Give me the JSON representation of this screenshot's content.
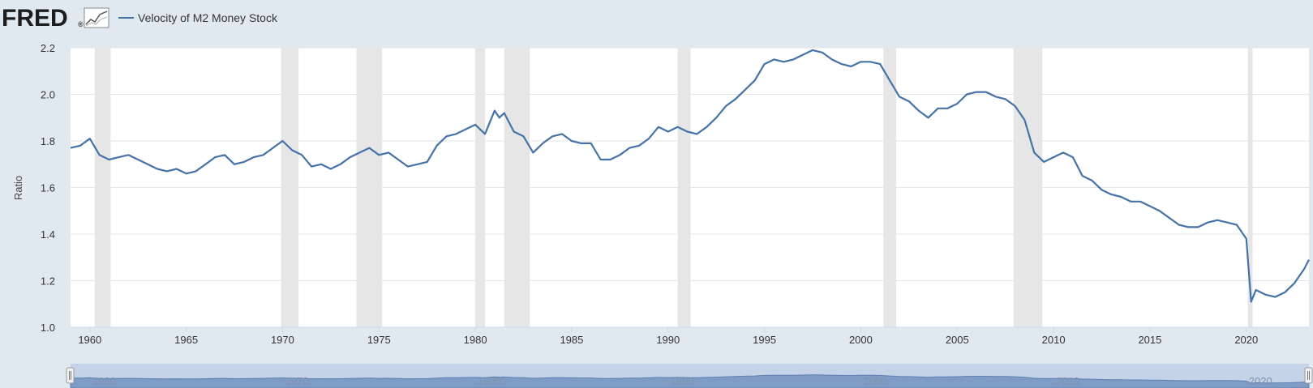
{
  "header": {
    "logo_text": "FRED",
    "logo_mark": "®",
    "logo_icon": "line-chart-icon"
  },
  "colors": {
    "series": "#4572a7",
    "recession": "#e6e6e6",
    "background": "#e1e9f0",
    "plot_bg": "#ffffff",
    "navigator_fill": "#7f9cc6",
    "navigator_mask": "#c5d3e8"
  },
  "chart_data": {
    "type": "line",
    "title": "",
    "xlabel": "",
    "ylabel": "Ratio",
    "xlim": [
      1959.0,
      2023.25
    ],
    "ylim": [
      1.0,
      2.2
    ],
    "yticks": [
      "1.0",
      "1.2",
      "1.4",
      "1.6",
      "1.8",
      "2.0",
      "2.2"
    ],
    "xticks": [
      "1960",
      "1965",
      "1970",
      "1975",
      "1980",
      "1985",
      "1990",
      "1995",
      "2000",
      "2005",
      "2010",
      "2015",
      "2020"
    ],
    "navigator_xticks": [
      "1960",
      "1970",
      "1980",
      "1990",
      "2000",
      "2010",
      "2020"
    ],
    "grid": true,
    "legend_position": "top-left",
    "recessions": [
      [
        1960.25,
        1961.08
      ],
      [
        1969.92,
        1970.83
      ],
      [
        1973.83,
        1975.17
      ],
      [
        1980.0,
        1980.5
      ],
      [
        1981.5,
        1982.83
      ],
      [
        1990.5,
        1991.17
      ],
      [
        2001.17,
        2001.83
      ],
      [
        2007.92,
        2009.42
      ],
      [
        2020.08,
        2020.33
      ]
    ],
    "series": [
      {
        "name": "Velocity of M2 Money Stock",
        "x": [
          1959.0,
          1959.5,
          1960.0,
          1960.5,
          1961.0,
          1961.5,
          1962.0,
          1962.5,
          1963.0,
          1963.5,
          1964.0,
          1964.5,
          1965.0,
          1965.5,
          1966.0,
          1966.5,
          1967.0,
          1967.5,
          1968.0,
          1968.5,
          1969.0,
          1969.5,
          1970.0,
          1970.5,
          1971.0,
          1971.5,
          1972.0,
          1972.5,
          1973.0,
          1973.5,
          1974.0,
          1974.5,
          1975.0,
          1975.5,
          1976.0,
          1976.5,
          1977.0,
          1977.5,
          1978.0,
          1978.5,
          1979.0,
          1979.5,
          1980.0,
          1980.5,
          1981.0,
          1981.25,
          1981.5,
          1982.0,
          1982.5,
          1983.0,
          1983.5,
          1984.0,
          1984.5,
          1985.0,
          1985.5,
          1986.0,
          1986.5,
          1987.0,
          1987.5,
          1988.0,
          1988.5,
          1989.0,
          1989.5,
          1990.0,
          1990.5,
          1991.0,
          1991.5,
          1992.0,
          1992.5,
          1993.0,
          1993.5,
          1994.0,
          1994.5,
          1995.0,
          1995.5,
          1996.0,
          1996.5,
          1997.0,
          1997.5,
          1998.0,
          1998.5,
          1999.0,
          1999.5,
          2000.0,
          2000.5,
          2001.0,
          2001.5,
          2002.0,
          2002.5,
          2003.0,
          2003.5,
          2004.0,
          2004.5,
          2005.0,
          2005.5,
          2006.0,
          2006.5,
          2007.0,
          2007.5,
          2008.0,
          2008.5,
          2009.0,
          2009.5,
          2010.0,
          2010.5,
          2011.0,
          2011.5,
          2012.0,
          2012.5,
          2013.0,
          2013.5,
          2014.0,
          2014.5,
          2015.0,
          2015.5,
          2016.0,
          2016.5,
          2017.0,
          2017.5,
          2018.0,
          2018.5,
          2019.0,
          2019.5,
          2020.0,
          2020.25,
          2020.5,
          2021.0,
          2021.5,
          2022.0,
          2022.5,
          2023.0,
          2023.25
        ],
        "y": [
          1.77,
          1.78,
          1.81,
          1.74,
          1.72,
          1.73,
          1.74,
          1.72,
          1.7,
          1.68,
          1.67,
          1.68,
          1.66,
          1.67,
          1.7,
          1.73,
          1.74,
          1.7,
          1.71,
          1.73,
          1.74,
          1.77,
          1.8,
          1.76,
          1.74,
          1.69,
          1.7,
          1.68,
          1.7,
          1.73,
          1.75,
          1.77,
          1.74,
          1.75,
          1.72,
          1.69,
          1.7,
          1.71,
          1.78,
          1.82,
          1.83,
          1.85,
          1.87,
          1.83,
          1.93,
          1.9,
          1.92,
          1.84,
          1.82,
          1.75,
          1.79,
          1.82,
          1.83,
          1.8,
          1.79,
          1.79,
          1.72,
          1.72,
          1.74,
          1.77,
          1.78,
          1.81,
          1.86,
          1.84,
          1.86,
          1.84,
          1.83,
          1.86,
          1.9,
          1.95,
          1.98,
          2.02,
          2.06,
          2.13,
          2.15,
          2.14,
          2.15,
          2.17,
          2.19,
          2.18,
          2.15,
          2.13,
          2.12,
          2.14,
          2.14,
          2.13,
          2.06,
          1.99,
          1.97,
          1.93,
          1.9,
          1.94,
          1.94,
          1.96,
          2.0,
          2.01,
          2.01,
          1.99,
          1.98,
          1.95,
          1.89,
          1.75,
          1.71,
          1.73,
          1.75,
          1.73,
          1.65,
          1.63,
          1.59,
          1.57,
          1.56,
          1.54,
          1.54,
          1.52,
          1.5,
          1.47,
          1.44,
          1.43,
          1.43,
          1.45,
          1.46,
          1.45,
          1.44,
          1.38,
          1.11,
          1.16,
          1.14,
          1.13,
          1.15,
          1.19,
          1.25,
          1.29
        ]
      }
    ]
  }
}
